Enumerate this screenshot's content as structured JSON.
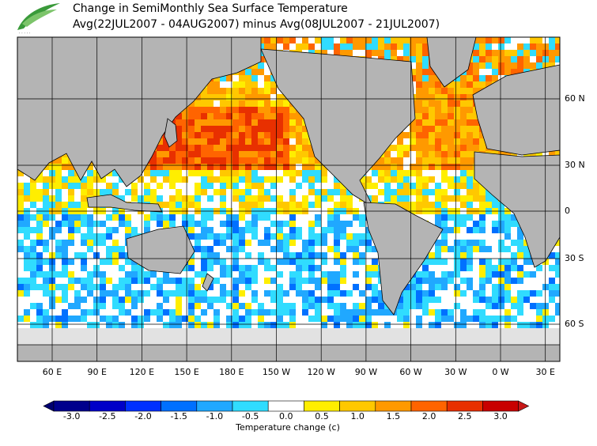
{
  "header": {
    "title": "Change in SemiMonthly Sea Surface Temperature",
    "subtitle": "Avg(22JUL2007 - 04AUG2007) minus Avg(08JUL2007 - 21JUL2007)"
  },
  "map": {
    "lat_labels": [
      "60 N",
      "30 N",
      "0",
      "30 S",
      "60 S"
    ],
    "lon_labels": [
      "60 E",
      "90 E",
      "120 E",
      "150 E",
      "180 E",
      "150 W",
      "120 W",
      "90 W",
      "60 W",
      "30 W",
      "0 W",
      "30 E"
    ]
  },
  "colorbar": {
    "label": "Temperature change  (c)",
    "ticks": [
      {
        "value": -3,
        "label": "-3.0"
      },
      {
        "value": -2.5,
        "label": "-2.5"
      },
      {
        "value": -2,
        "label": "-2.0"
      },
      {
        "value": -1.5,
        "label": "-1.5"
      },
      {
        "value": -1,
        "label": "-1.0"
      },
      {
        "value": -0.5,
        "label": "-0.5"
      },
      {
        "value": 0,
        "label": "0.0"
      },
      {
        "value": 0.5,
        "label": "0.5"
      },
      {
        "value": 1,
        "label": "1.0"
      },
      {
        "value": 1.5,
        "label": "1.5"
      },
      {
        "value": 2,
        "label": "2.0"
      },
      {
        "value": 2.5,
        "label": "2.5"
      },
      {
        "value": 3,
        "label": "3.0"
      }
    ],
    "colors": [
      "#00008c",
      "#0000c8",
      "#0030ff",
      "#0070ff",
      "#20a8ff",
      "#30dcff",
      "#ffffff",
      "#ffee00",
      "#ffc800",
      "#ff9900",
      "#ff6400",
      "#e83000",
      "#c80000"
    ],
    "under_color": "#000070",
    "over_color": "#c81818"
  }
}
